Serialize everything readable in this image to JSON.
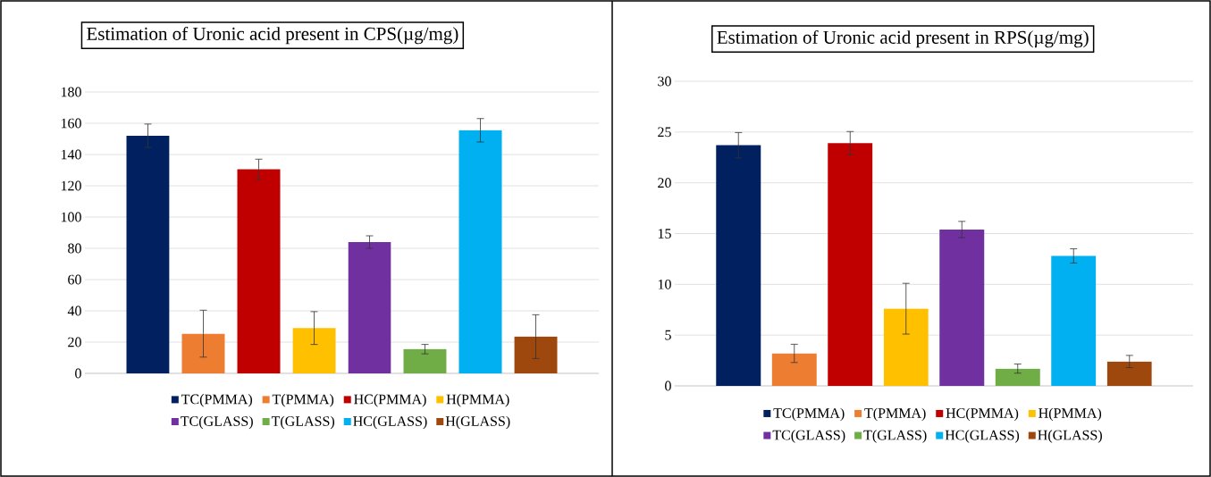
{
  "chart_data": [
    {
      "type": "bar",
      "title": "Estimation of Uronic acid present in CPS(µg/mg)",
      "categories": [
        null
      ],
      "ylim": [
        0,
        180
      ],
      "yticks": [
        0,
        20,
        40,
        60,
        80,
        100,
        120,
        140,
        160,
        180
      ],
      "grid": "y",
      "legend": "bottom",
      "series": [
        {
          "name": "TC(PMMA)",
          "color": "#002060",
          "values": [
            152
          ],
          "errors": [
            7.5
          ]
        },
        {
          "name": "T(PMMA)",
          "color": "#ED7D31",
          "values": [
            25.4
          ],
          "errors": [
            15
          ]
        },
        {
          "name": "HC(PMMA)",
          "color": "#C00000",
          "values": [
            130.5
          ],
          "errors": [
            6.5
          ]
        },
        {
          "name": "H(PMMA)",
          "color": "#FFC000",
          "values": [
            29
          ],
          "errors": [
            10.5
          ]
        },
        {
          "name": "TC(GLASS)",
          "color": "#7030A0",
          "values": [
            84
          ],
          "errors": [
            4
          ]
        },
        {
          "name": "T(GLASS)",
          "color": "#70AD47",
          "values": [
            15.5
          ],
          "errors": [
            3
          ]
        },
        {
          "name": "HC(GLASS)",
          "color": "#00B0F0",
          "values": [
            155.5
          ],
          "errors": [
            7.5
          ]
        },
        {
          "name": "H(GLASS)",
          "color": "#9E480E",
          "values": [
            23.5
          ],
          "errors": [
            14
          ]
        }
      ]
    },
    {
      "type": "bar",
      "title": "Estimation of Uronic acid present in RPS(µg/mg)",
      "categories": [
        null
      ],
      "ylim": [
        0,
        30
      ],
      "yticks": [
        0,
        5,
        10,
        15,
        20,
        25,
        30
      ],
      "grid": "y",
      "legend": "bottom",
      "series": [
        {
          "name": "TC(PMMA)",
          "color": "#002060",
          "values": [
            23.7
          ],
          "errors": [
            1.25
          ]
        },
        {
          "name": "T(PMMA)",
          "color": "#ED7D31",
          "values": [
            3.2
          ],
          "errors": [
            0.9
          ]
        },
        {
          "name": "HC(PMMA)",
          "color": "#C00000",
          "values": [
            23.9
          ],
          "errors": [
            1.15
          ]
        },
        {
          "name": "H(PMMA)",
          "color": "#FFC000",
          "values": [
            7.6
          ],
          "errors": [
            2.5
          ]
        },
        {
          "name": "TC(GLASS)",
          "color": "#7030A0",
          "values": [
            15.4
          ],
          "errors": [
            0.8
          ]
        },
        {
          "name": "T(GLASS)",
          "color": "#70AD47",
          "values": [
            1.7
          ],
          "errors": [
            0.45
          ]
        },
        {
          "name": "HC(GLASS)",
          "color": "#00B0F0",
          "values": [
            12.8
          ],
          "errors": [
            0.7
          ]
        },
        {
          "name": "H(GLASS)",
          "color": "#9E480E",
          "values": [
            2.4
          ],
          "errors": [
            0.6
          ]
        }
      ]
    }
  ]
}
